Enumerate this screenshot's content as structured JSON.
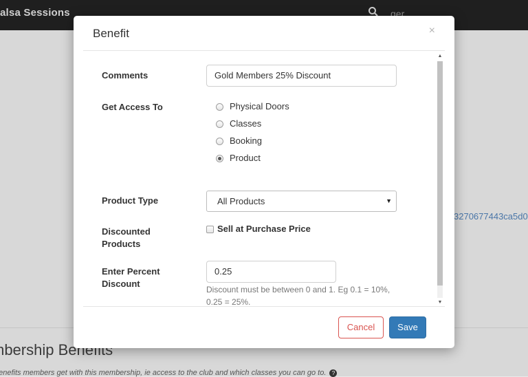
{
  "background": {
    "brand": "alsa Sessions",
    "search_text": "ger",
    "id_fragment": "3270677443ca5d0",
    "heading": "mbership Benefits",
    "description": "benefits members get with this membership, ie access to the club and which classes you can go to."
  },
  "modal": {
    "title": "Benefit",
    "close_label": "×",
    "comments": {
      "label": "Comments",
      "value": "Gold Members 25% Discount"
    },
    "access": {
      "label": "Get Access To",
      "options": [
        "Physical Doors",
        "Classes",
        "Booking",
        "Product"
      ],
      "selected": "Product"
    },
    "product_type": {
      "label": "Product Type",
      "selected": "All Products"
    },
    "discounted": {
      "label_line1": "Discounted",
      "label_line2": "Products",
      "checkbox_label": "Sell at Purchase Price",
      "checked": false
    },
    "percent": {
      "label_line1": "Enter Percent",
      "label_line2": "Discount",
      "value": "0.25",
      "help": "Discount must be between 0 and 1. Eg 0.1 = 10%, 0.25 = 25%."
    },
    "buttons": {
      "cancel": "Cancel",
      "save": "Save"
    }
  },
  "colors": {
    "cancel": "#d9534f",
    "save": "#337ab7",
    "topbar": "#1f1f1f"
  }
}
